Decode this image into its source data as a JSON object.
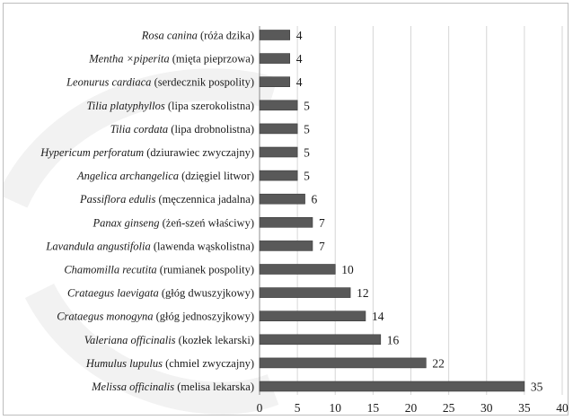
{
  "chart_data": {
    "type": "bar",
    "orientation": "horizontal",
    "xlim": [
      0,
      40
    ],
    "x_ticks": [
      0,
      5,
      10,
      15,
      20,
      25,
      30,
      35,
      40
    ],
    "grid": true,
    "bar_color": "#595959",
    "categories": [
      {
        "latin": "Rosa canina",
        "polish": "(róża dzika)",
        "value": 4
      },
      {
        "latin": "Mentha ×piperita",
        "polish": "(mięta pieprzowa)",
        "value": 4
      },
      {
        "latin": "Leonurus cardiaca",
        "polish": "(serdecznik pospolity)",
        "value": 4
      },
      {
        "latin": "Tilia platyphyllos",
        "polish": "(lipa szerokolistna)",
        "value": 5
      },
      {
        "latin": "Tilia cordata",
        "polish": "(lipa drobnolistna)",
        "value": 5
      },
      {
        "latin": "Hypericum perforatum",
        "polish": "(dziurawiec zwyczajny)",
        "value": 5
      },
      {
        "latin": "Angelica archangelica",
        "polish": "(dzięgiel litwor)",
        "value": 5
      },
      {
        "latin": "Passiflora edulis",
        "polish": "(męczennica jadalna)",
        "value": 6
      },
      {
        "latin": "Panax ginseng",
        "polish": "(żeń-szeń właściwy)",
        "value": 7
      },
      {
        "latin": "Lavandula angustifolia",
        "polish": "(lawenda wąskolistna)",
        "value": 7
      },
      {
        "latin": "Chamomilla recutita",
        "polish": "(rumianek pospolity)",
        "value": 10
      },
      {
        "latin": "Crataegus laevigata",
        "polish": "(głóg dwuszyjkowy)",
        "value": 12
      },
      {
        "latin": "Crataegus monogyna",
        "polish": "(głóg jednoszyjkowy)",
        "value": 14
      },
      {
        "latin": "Valeriana officinalis",
        "polish": "(kozłek lekarski)",
        "value": 16
      },
      {
        "latin": "Humulus lupulus",
        "polish": "(chmiel zwyczajny)",
        "value": 22
      },
      {
        "latin": "Melissa officinalis",
        "polish": "(melisa lekarska)",
        "value": 35
      }
    ]
  }
}
